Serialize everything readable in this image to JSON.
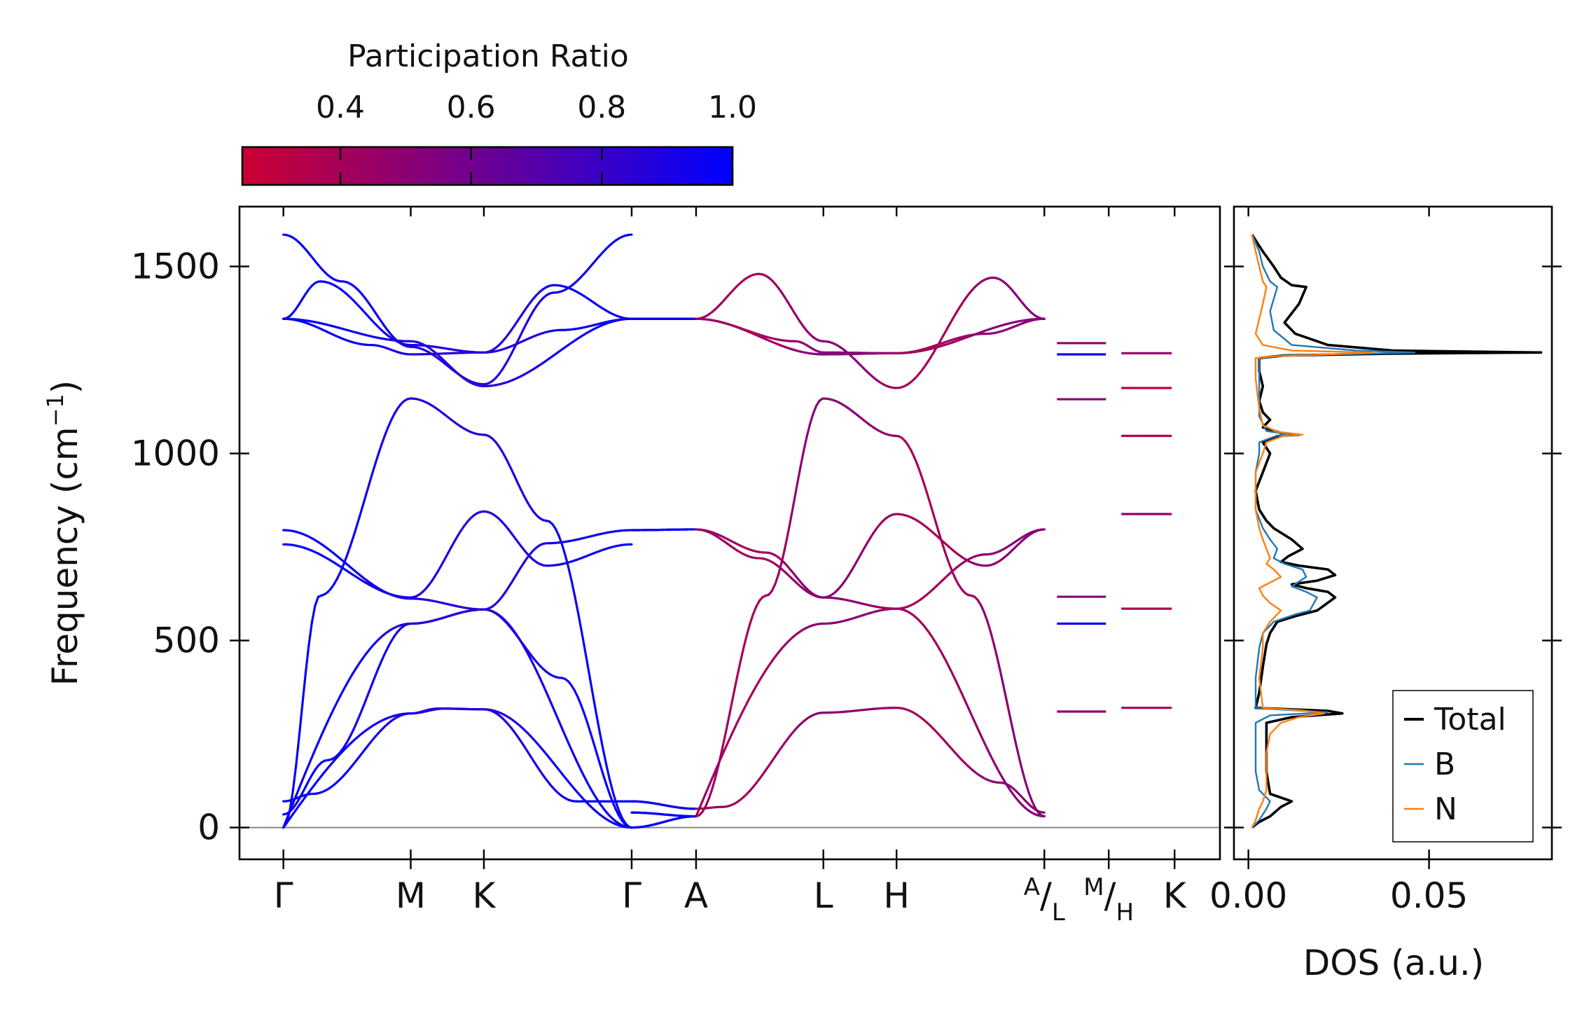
{
  "chart_data": [
    {
      "type": "line",
      "panel": "phonon-dispersion",
      "ylabel": "Frequency (cm$^{-1}$)",
      "ylabel_main": "Frequency (cm",
      "ylabel_sup": "−1",
      "ylabel_close": ")",
      "ylim": [
        -85,
        1660
      ],
      "yticks": [
        0,
        500,
        1000,
        1500
      ],
      "ytick_labels": [
        "0",
        "500",
        "1000",
        "1500"
      ],
      "xlim": [
        0,
        6.7
      ],
      "path_ticks": [
        {
          "x": 0.3,
          "label": "Γ"
        },
        {
          "x": 1.17,
          "label": "M"
        },
        {
          "x": 1.67,
          "label": "K"
        },
        {
          "x": 2.68,
          "label": "Γ"
        },
        {
          "x": 3.12,
          "label": "A"
        },
        {
          "x": 3.99,
          "label": "L"
        },
        {
          "x": 4.49,
          "label": "H"
        },
        {
          "x": 5.5,
          "label": "A/L",
          "num": "A",
          "den": "L"
        },
        {
          "x": 5.94,
          "label": "M/H",
          "num": "M",
          "den": "H"
        },
        {
          "x": 6.39,
          "label": "K"
        }
      ],
      "zero_line": 0,
      "branch_count": 12,
      "segments": [
        {
          "name": "Γ-M-K-Γ",
          "x_start": 0.3,
          "x_end": 2.68,
          "pr_range": [
            0.85,
            1.0
          ]
        },
        {
          "name": "A-L-H-A",
          "x_start": 3.12,
          "x_end": 5.5,
          "pr_range": [
            0.35,
            0.5
          ]
        },
        {
          "name": "L-M",
          "x_start": 5.5,
          "x_end": 5.94,
          "frequencies": [
            310,
            545,
            617,
            1145,
            1265,
            1295
          ],
          "participation": [
            0.5,
            0.95,
            0.55,
            0.5,
            0.95,
            0.5
          ]
        },
        {
          "name": "H-K",
          "x_start": 5.94,
          "x_end": 6.39,
          "frequencies": [
            320,
            585,
            838,
            1047,
            1175,
            1268
          ],
          "participation": [
            0.4,
            0.35,
            0.45,
            0.35,
            0.3,
            0.45
          ]
        }
      ],
      "high_symmetry_frequencies": {
        "Γ": [
          0,
          0,
          0,
          757,
          795,
          1360,
          1585
        ],
        "M": [
          305,
          545,
          615,
          1147,
          1265,
          1300
        ],
        "K": [
          315,
          583,
          845,
          1050,
          1180,
          1270
        ],
        "A": [
          30,
          50,
          797,
          1360
        ],
        "L": [
          307,
          545,
          615,
          1147,
          1270,
          1300
        ],
        "H": [
          320,
          585,
          838,
          1047,
          1175,
          1268
        ]
      }
    },
    {
      "type": "colorbar",
      "title": "Participation Ratio",
      "range": [
        0.25,
        1.0
      ],
      "ticks": [
        0.4,
        0.6,
        0.8,
        1.0
      ],
      "tick_labels": [
        "0.4",
        "0.6",
        "0.8",
        "1.0"
      ],
      "color_low": "#cc0033",
      "color_mid": "#800080",
      "color_high": "#0000ff"
    },
    {
      "type": "line",
      "panel": "dos",
      "xlabel": "DOS (a.u.)",
      "xlim": [
        -0.004,
        0.084
      ],
      "xticks": [
        0.0,
        0.05
      ],
      "xtick_labels": [
        "0.00",
        "0.05"
      ],
      "ylim": [
        -85,
        1660
      ],
      "legend_position": "bottom-right",
      "series": [
        {
          "name": "Total",
          "color": "#000000",
          "points": [
            [
              0.001,
              0
            ],
            [
              0.003,
              15
            ],
            [
              0.006,
              30
            ],
            [
              0.009,
              55
            ],
            [
              0.012,
              70
            ],
            [
              0.006,
              90
            ],
            [
              0.005,
              150
            ],
            [
              0.005,
              230
            ],
            [
              0.005,
              280
            ],
            [
              0.012,
              295
            ],
            [
              0.026,
              305
            ],
            [
              0.022,
              312
            ],
            [
              0.002,
              320
            ],
            [
              0.003,
              360
            ],
            [
              0.004,
              430
            ],
            [
              0.005,
              490
            ],
            [
              0.006,
              520
            ],
            [
              0.008,
              550
            ],
            [
              0.013,
              565
            ],
            [
              0.019,
              580
            ],
            [
              0.024,
              615
            ],
            [
              0.022,
              630
            ],
            [
              0.016,
              640
            ],
            [
              0.012,
              650
            ],
            [
              0.019,
              660
            ],
            [
              0.024,
              675
            ],
            [
              0.022,
              690
            ],
            [
              0.014,
              700
            ],
            [
              0.009,
              710
            ],
            [
              0.011,
              725
            ],
            [
              0.015,
              745
            ],
            [
              0.012,
              770
            ],
            [
              0.007,
              800
            ],
            [
              0.005,
              820
            ],
            [
              0.003,
              850
            ],
            [
              0.002,
              900
            ],
            [
              0.004,
              950
            ],
            [
              0.006,
              1000
            ],
            [
              0.004,
              1030
            ],
            [
              0.009,
              1048
            ],
            [
              0.014,
              1050
            ],
            [
              0.009,
              1055
            ],
            [
              0.004,
              1070
            ],
            [
              0.006,
              1090
            ],
            [
              0.004,
              1110
            ],
            [
              0.003,
              1140
            ],
            [
              0.004,
              1180
            ],
            [
              0.003,
              1220
            ],
            [
              0.003,
              1255
            ],
            [
              0.01,
              1262
            ],
            [
              0.04,
              1267
            ],
            [
              0.081,
              1270
            ],
            [
              0.04,
              1275
            ],
            [
              0.022,
              1290
            ],
            [
              0.013,
              1320
            ],
            [
              0.01,
              1350
            ],
            [
              0.014,
              1400
            ],
            [
              0.016,
              1445
            ],
            [
              0.012,
              1450
            ],
            [
              0.009,
              1470
            ],
            [
              0.007,
              1500
            ],
            [
              0.004,
              1540
            ],
            [
              0.001,
              1585
            ]
          ]
        },
        {
          "name": "B",
          "color": "#1f77b4",
          "points": [
            [
              0.001,
              0
            ],
            [
              0.003,
              20
            ],
            [
              0.005,
              50
            ],
            [
              0.006,
              70
            ],
            [
              0.003,
              100
            ],
            [
              0.002,
              150
            ],
            [
              0.002,
              230
            ],
            [
              0.002,
              280
            ],
            [
              0.006,
              300
            ],
            [
              0.022,
              308
            ],
            [
              0.01,
              315
            ],
            [
              0.002,
              320
            ],
            [
              0.002,
              400
            ],
            [
              0.003,
              480
            ],
            [
              0.004,
              520
            ],
            [
              0.007,
              550
            ],
            [
              0.013,
              570
            ],
            [
              0.017,
              580
            ],
            [
              0.019,
              615
            ],
            [
              0.016,
              630
            ],
            [
              0.012,
              645
            ],
            [
              0.016,
              670
            ],
            [
              0.015,
              690
            ],
            [
              0.01,
              705
            ],
            [
              0.007,
              720
            ],
            [
              0.008,
              745
            ],
            [
              0.006,
              770
            ],
            [
              0.004,
              800
            ],
            [
              0.002,
              850
            ],
            [
              0.002,
              950
            ],
            [
              0.003,
              1000
            ],
            [
              0.003,
              1030
            ],
            [
              0.008,
              1048
            ],
            [
              0.011,
              1052
            ],
            [
              0.005,
              1060
            ],
            [
              0.003,
              1100
            ],
            [
              0.003,
              1180
            ],
            [
              0.003,
              1255
            ],
            [
              0.01,
              1262
            ],
            [
              0.03,
              1266
            ],
            [
              0.046,
              1270
            ],
            [
              0.03,
              1275
            ],
            [
              0.012,
              1290
            ],
            [
              0.007,
              1330
            ],
            [
              0.006,
              1380
            ],
            [
              0.008,
              1445
            ],
            [
              0.006,
              1460
            ],
            [
              0.004,
              1500
            ],
            [
              0.003,
              1540
            ],
            [
              0.001,
              1585
            ]
          ]
        },
        {
          "name": "N",
          "color": "#ff7f0e",
          "points": [
            [
              0.001,
              0
            ],
            [
              0.002,
              20
            ],
            [
              0.003,
              50
            ],
            [
              0.004,
              70
            ],
            [
              0.005,
              100
            ],
            [
              0.005,
              200
            ],
            [
              0.006,
              250
            ],
            [
              0.009,
              280
            ],
            [
              0.014,
              295
            ],
            [
              0.021,
              305
            ],
            [
              0.015,
              313
            ],
            [
              0.004,
              320
            ],
            [
              0.003,
              400
            ],
            [
              0.004,
              480
            ],
            [
              0.004,
              520
            ],
            [
              0.006,
              550
            ],
            [
              0.008,
              570
            ],
            [
              0.009,
              580
            ],
            [
              0.006,
              600
            ],
            [
              0.004,
              620
            ],
            [
              0.003,
              640
            ],
            [
              0.006,
              655
            ],
            [
              0.009,
              670
            ],
            [
              0.007,
              690
            ],
            [
              0.005,
              705
            ],
            [
              0.006,
              720
            ],
            [
              0.005,
              745
            ],
            [
              0.004,
              770
            ],
            [
              0.003,
              800
            ],
            [
              0.002,
              850
            ],
            [
              0.002,
              950
            ],
            [
              0.004,
              1000
            ],
            [
              0.005,
              1030
            ],
            [
              0.01,
              1048
            ],
            [
              0.015,
              1050
            ],
            [
              0.008,
              1058
            ],
            [
              0.004,
              1075
            ],
            [
              0.003,
              1120
            ],
            [
              0.002,
              1200
            ],
            [
              0.002,
              1255
            ],
            [
              0.008,
              1260
            ],
            [
              0.022,
              1265
            ],
            [
              0.034,
              1270
            ],
            [
              0.012,
              1275
            ],
            [
              0.004,
              1290
            ],
            [
              0.002,
              1320
            ],
            [
              0.003,
              1360
            ],
            [
              0.004,
              1400
            ],
            [
              0.005,
              1445
            ],
            [
              0.004,
              1460
            ],
            [
              0.003,
              1500
            ],
            [
              0.002,
              1540
            ],
            [
              0.001,
              1585
            ]
          ]
        }
      ]
    }
  ]
}
